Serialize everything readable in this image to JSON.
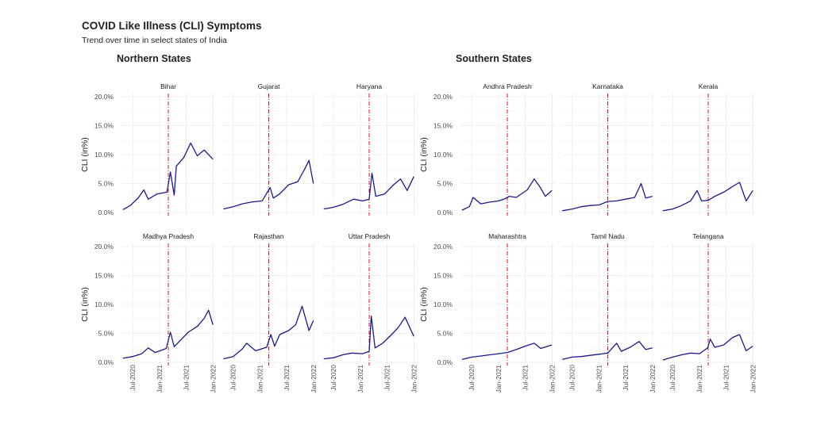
{
  "title": "COVID Like Illness (CLI) Symptoms",
  "subtitle": "Trend over time in select states of India",
  "colors": {
    "line": "#1a1a8c",
    "line_highlight": "#7a2a6a",
    "vline": "#ee1111",
    "grid": "#ebebeb"
  },
  "chart_data": [
    {
      "type": "line",
      "group_title": "Northern States",
      "ylabel": "CLI (in%)",
      "y_ticks": [
        "0.0%",
        "5.0%",
        "10.0%",
        "15.0%",
        "20.0%"
      ],
      "x_ticks": [
        "Jul-2020",
        "Jan-2021",
        "Jul-2021",
        "Jan-2022"
      ],
      "ylim": [
        0,
        20
      ],
      "xlim": [
        "2020-04-15",
        "2022-01-15"
      ],
      "vline_date": "2021-03-01",
      "grid": true,
      "panels": [
        {
          "name": "Bihar",
          "points": [
            [
              "2020-04-25",
              0.5
            ],
            [
              "2020-06-15",
              1.2
            ],
            [
              "2020-08-10",
              2.6
            ],
            [
              "2020-09-15",
              3.9
            ],
            [
              "2020-10-15",
              2.3
            ],
            [
              "2020-12-15",
              3.2
            ],
            [
              "2021-02-20",
              3.5
            ],
            [
              "2021-03-15",
              7.0
            ],
            [
              "2021-04-10",
              3.0
            ],
            [
              "2021-04-25",
              8.0
            ],
            [
              "2021-06-15",
              9.5
            ],
            [
              "2021-08-01",
              12.0
            ],
            [
              "2021-09-15",
              9.8
            ],
            [
              "2021-11-01",
              10.8
            ],
            [
              "2021-12-31",
              9.2
            ]
          ]
        },
        {
          "name": "Gujarat",
          "points": [
            [
              "2020-04-25",
              0.6
            ],
            [
              "2020-07-01",
              1.0
            ],
            [
              "2020-09-01",
              1.5
            ],
            [
              "2020-11-01",
              1.8
            ],
            [
              "2021-01-15",
              2.0
            ],
            [
              "2021-03-10",
              4.3
            ],
            [
              "2021-04-01",
              2.5
            ],
            [
              "2021-05-15",
              3.2
            ],
            [
              "2021-07-15",
              4.8
            ],
            [
              "2021-09-15",
              5.3
            ],
            [
              "2021-11-01",
              7.5
            ],
            [
              "2021-12-01",
              9.0
            ],
            [
              "2021-12-31",
              5.0
            ]
          ]
        },
        {
          "name": "Haryana",
          "points": [
            [
              "2020-04-25",
              0.6
            ],
            [
              "2020-07-01",
              0.9
            ],
            [
              "2020-09-01",
              1.4
            ],
            [
              "2020-11-15",
              2.3
            ],
            [
              "2021-01-15",
              2.0
            ],
            [
              "2021-03-01",
              2.3
            ],
            [
              "2021-03-20",
              6.8
            ],
            [
              "2021-04-15",
              2.8
            ],
            [
              "2021-06-15",
              3.2
            ],
            [
              "2021-08-15",
              4.8
            ],
            [
              "2021-10-01",
              5.8
            ],
            [
              "2021-11-15",
              3.8
            ],
            [
              "2021-12-31",
              6.2
            ]
          ]
        },
        {
          "name": "Madhya Pradesh",
          "points": [
            [
              "2020-04-25",
              0.7
            ],
            [
              "2020-07-01",
              1.0
            ],
            [
              "2020-09-01",
              1.5
            ],
            [
              "2020-10-15",
              2.5
            ],
            [
              "2020-12-01",
              1.7
            ],
            [
              "2021-02-15",
              2.4
            ],
            [
              "2021-03-15",
              5.2
            ],
            [
              "2021-04-10",
              2.7
            ],
            [
              "2021-05-15",
              3.6
            ],
            [
              "2021-07-15",
              5.2
            ],
            [
              "2021-09-15",
              6.2
            ],
            [
              "2021-11-01",
              7.6
            ],
            [
              "2021-12-01",
              9.0
            ],
            [
              "2021-12-31",
              6.5
            ]
          ]
        },
        {
          "name": "Rajasthan",
          "points": [
            [
              "2020-04-25",
              0.6
            ],
            [
              "2020-07-01",
              1.0
            ],
            [
              "2020-09-01",
              2.3
            ],
            [
              "2020-10-01",
              3.3
            ],
            [
              "2020-12-01",
              2.0
            ],
            [
              "2021-02-15",
              2.6
            ],
            [
              "2021-03-15",
              4.8
            ],
            [
              "2021-04-10",
              2.8
            ],
            [
              "2021-05-15",
              4.8
            ],
            [
              "2021-07-15",
              5.5
            ],
            [
              "2021-09-01",
              6.5
            ],
            [
              "2021-10-15",
              9.7
            ],
            [
              "2021-12-01",
              5.5
            ],
            [
              "2021-12-31",
              7.2
            ]
          ]
        },
        {
          "name": "Uttar Pradesh",
          "points": [
            [
              "2020-04-25",
              0.6
            ],
            [
              "2020-07-01",
              0.8
            ],
            [
              "2020-09-01",
              1.3
            ],
            [
              "2020-11-01",
              1.6
            ],
            [
              "2021-01-15",
              1.5
            ],
            [
              "2021-03-01",
              1.9
            ],
            [
              "2021-03-15",
              8.0
            ],
            [
              "2021-04-10",
              2.5
            ],
            [
              "2021-06-01",
              3.3
            ],
            [
              "2021-08-01",
              4.8
            ],
            [
              "2021-09-15",
              6.0
            ],
            [
              "2021-11-01",
              7.8
            ],
            [
              "2021-12-31",
              4.5
            ]
          ]
        }
      ]
    },
    {
      "type": "line",
      "group_title": "Southern States",
      "ylabel": "CLI (in%)",
      "y_ticks": [
        "0.0%",
        "5.0%",
        "10.0%",
        "15.0%",
        "20.0%"
      ],
      "x_ticks": [
        "Jul-2020",
        "Jan-2021",
        "Jul-2021",
        "Jan-2022"
      ],
      "ylim": [
        0,
        20
      ],
      "xlim": [
        "2020-04-15",
        "2022-01-15"
      ],
      "vline_date": "2021-03-01",
      "grid": true,
      "panels": [
        {
          "name": "Andhra Pradesh",
          "points": [
            [
              "2020-04-25",
              0.4
            ],
            [
              "2020-06-15",
              1.0
            ],
            [
              "2020-07-10",
              2.6
            ],
            [
              "2020-09-01",
              1.5
            ],
            [
              "2020-11-01",
              1.8
            ],
            [
              "2021-01-01",
              2.0
            ],
            [
              "2021-02-15",
              2.4
            ],
            [
              "2021-03-15",
              2.8
            ],
            [
              "2021-05-01",
              2.6
            ],
            [
              "2021-07-15",
              3.9
            ],
            [
              "2021-09-01",
              5.8
            ],
            [
              "2021-10-15",
              4.2
            ],
            [
              "2021-11-15",
              2.8
            ],
            [
              "2021-12-31",
              3.8
            ]
          ]
        },
        {
          "name": "Karnataka",
          "points": [
            [
              "2020-04-25",
              0.3
            ],
            [
              "2020-07-01",
              0.6
            ],
            [
              "2020-09-01",
              1.0
            ],
            [
              "2020-11-01",
              1.2
            ],
            [
              "2021-01-01",
              1.3
            ],
            [
              "2021-03-01",
              1.9
            ],
            [
              "2021-05-01",
              2.0
            ],
            [
              "2021-07-01",
              2.3
            ],
            [
              "2021-09-01",
              2.6
            ],
            [
              "2021-10-15",
              5.0
            ],
            [
              "2021-11-15",
              2.5
            ],
            [
              "2021-12-31",
              2.8
            ]
          ]
        },
        {
          "name": "Kerala",
          "points": [
            [
              "2020-04-25",
              0.3
            ],
            [
              "2020-07-01",
              0.6
            ],
            [
              "2020-09-01",
              1.2
            ],
            [
              "2020-11-01",
              2.0
            ],
            [
              "2020-12-15",
              3.8
            ],
            [
              "2021-01-15",
              2.0
            ],
            [
              "2021-03-01",
              2.1
            ],
            [
              "2021-04-15",
              2.8
            ],
            [
              "2021-06-15",
              3.5
            ],
            [
              "2021-08-15",
              4.5
            ],
            [
              "2021-10-01",
              5.2
            ],
            [
              "2021-11-15",
              2.0
            ],
            [
              "2021-12-31",
              3.8
            ]
          ]
        },
        {
          "name": "Maharashtra",
          "points": [
            [
              "2020-04-25",
              0.5
            ],
            [
              "2020-07-01",
              0.9
            ],
            [
              "2020-09-01",
              1.1
            ],
            [
              "2020-11-01",
              1.3
            ],
            [
              "2021-01-01",
              1.5
            ],
            [
              "2021-03-01",
              1.7
            ],
            [
              "2021-05-01",
              2.2
            ],
            [
              "2021-07-01",
              2.8
            ],
            [
              "2021-09-01",
              3.3
            ],
            [
              "2021-10-15",
              2.4
            ],
            [
              "2021-12-31",
              3.0
            ]
          ]
        },
        {
          "name": "Tamil Nadu",
          "points": [
            [
              "2020-04-25",
              0.5
            ],
            [
              "2020-07-01",
              0.9
            ],
            [
              "2020-09-01",
              1.0
            ],
            [
              "2020-11-01",
              1.2
            ],
            [
              "2021-01-01",
              1.4
            ],
            [
              "2021-03-01",
              1.6
            ],
            [
              "2021-05-01",
              3.3
            ],
            [
              "2021-06-01",
              1.9
            ],
            [
              "2021-08-01",
              2.6
            ],
            [
              "2021-10-01",
              3.6
            ],
            [
              "2021-11-15",
              2.2
            ],
            [
              "2021-12-31",
              2.5
            ]
          ]
        },
        {
          "name": "Telangana",
          "points": [
            [
              "2020-04-25",
              0.4
            ],
            [
              "2020-07-01",
              0.9
            ],
            [
              "2020-09-01",
              1.3
            ],
            [
              "2020-11-01",
              1.6
            ],
            [
              "2021-01-01",
              1.5
            ],
            [
              "2021-02-25",
              2.5
            ],
            [
              "2021-03-15",
              4.0
            ],
            [
              "2021-04-15",
              2.6
            ],
            [
              "2021-06-15",
              3.0
            ],
            [
              "2021-08-15",
              4.3
            ],
            [
              "2021-10-01",
              4.8
            ],
            [
              "2021-11-15",
              2.0
            ],
            [
              "2021-12-31",
              2.8
            ]
          ]
        }
      ]
    }
  ]
}
